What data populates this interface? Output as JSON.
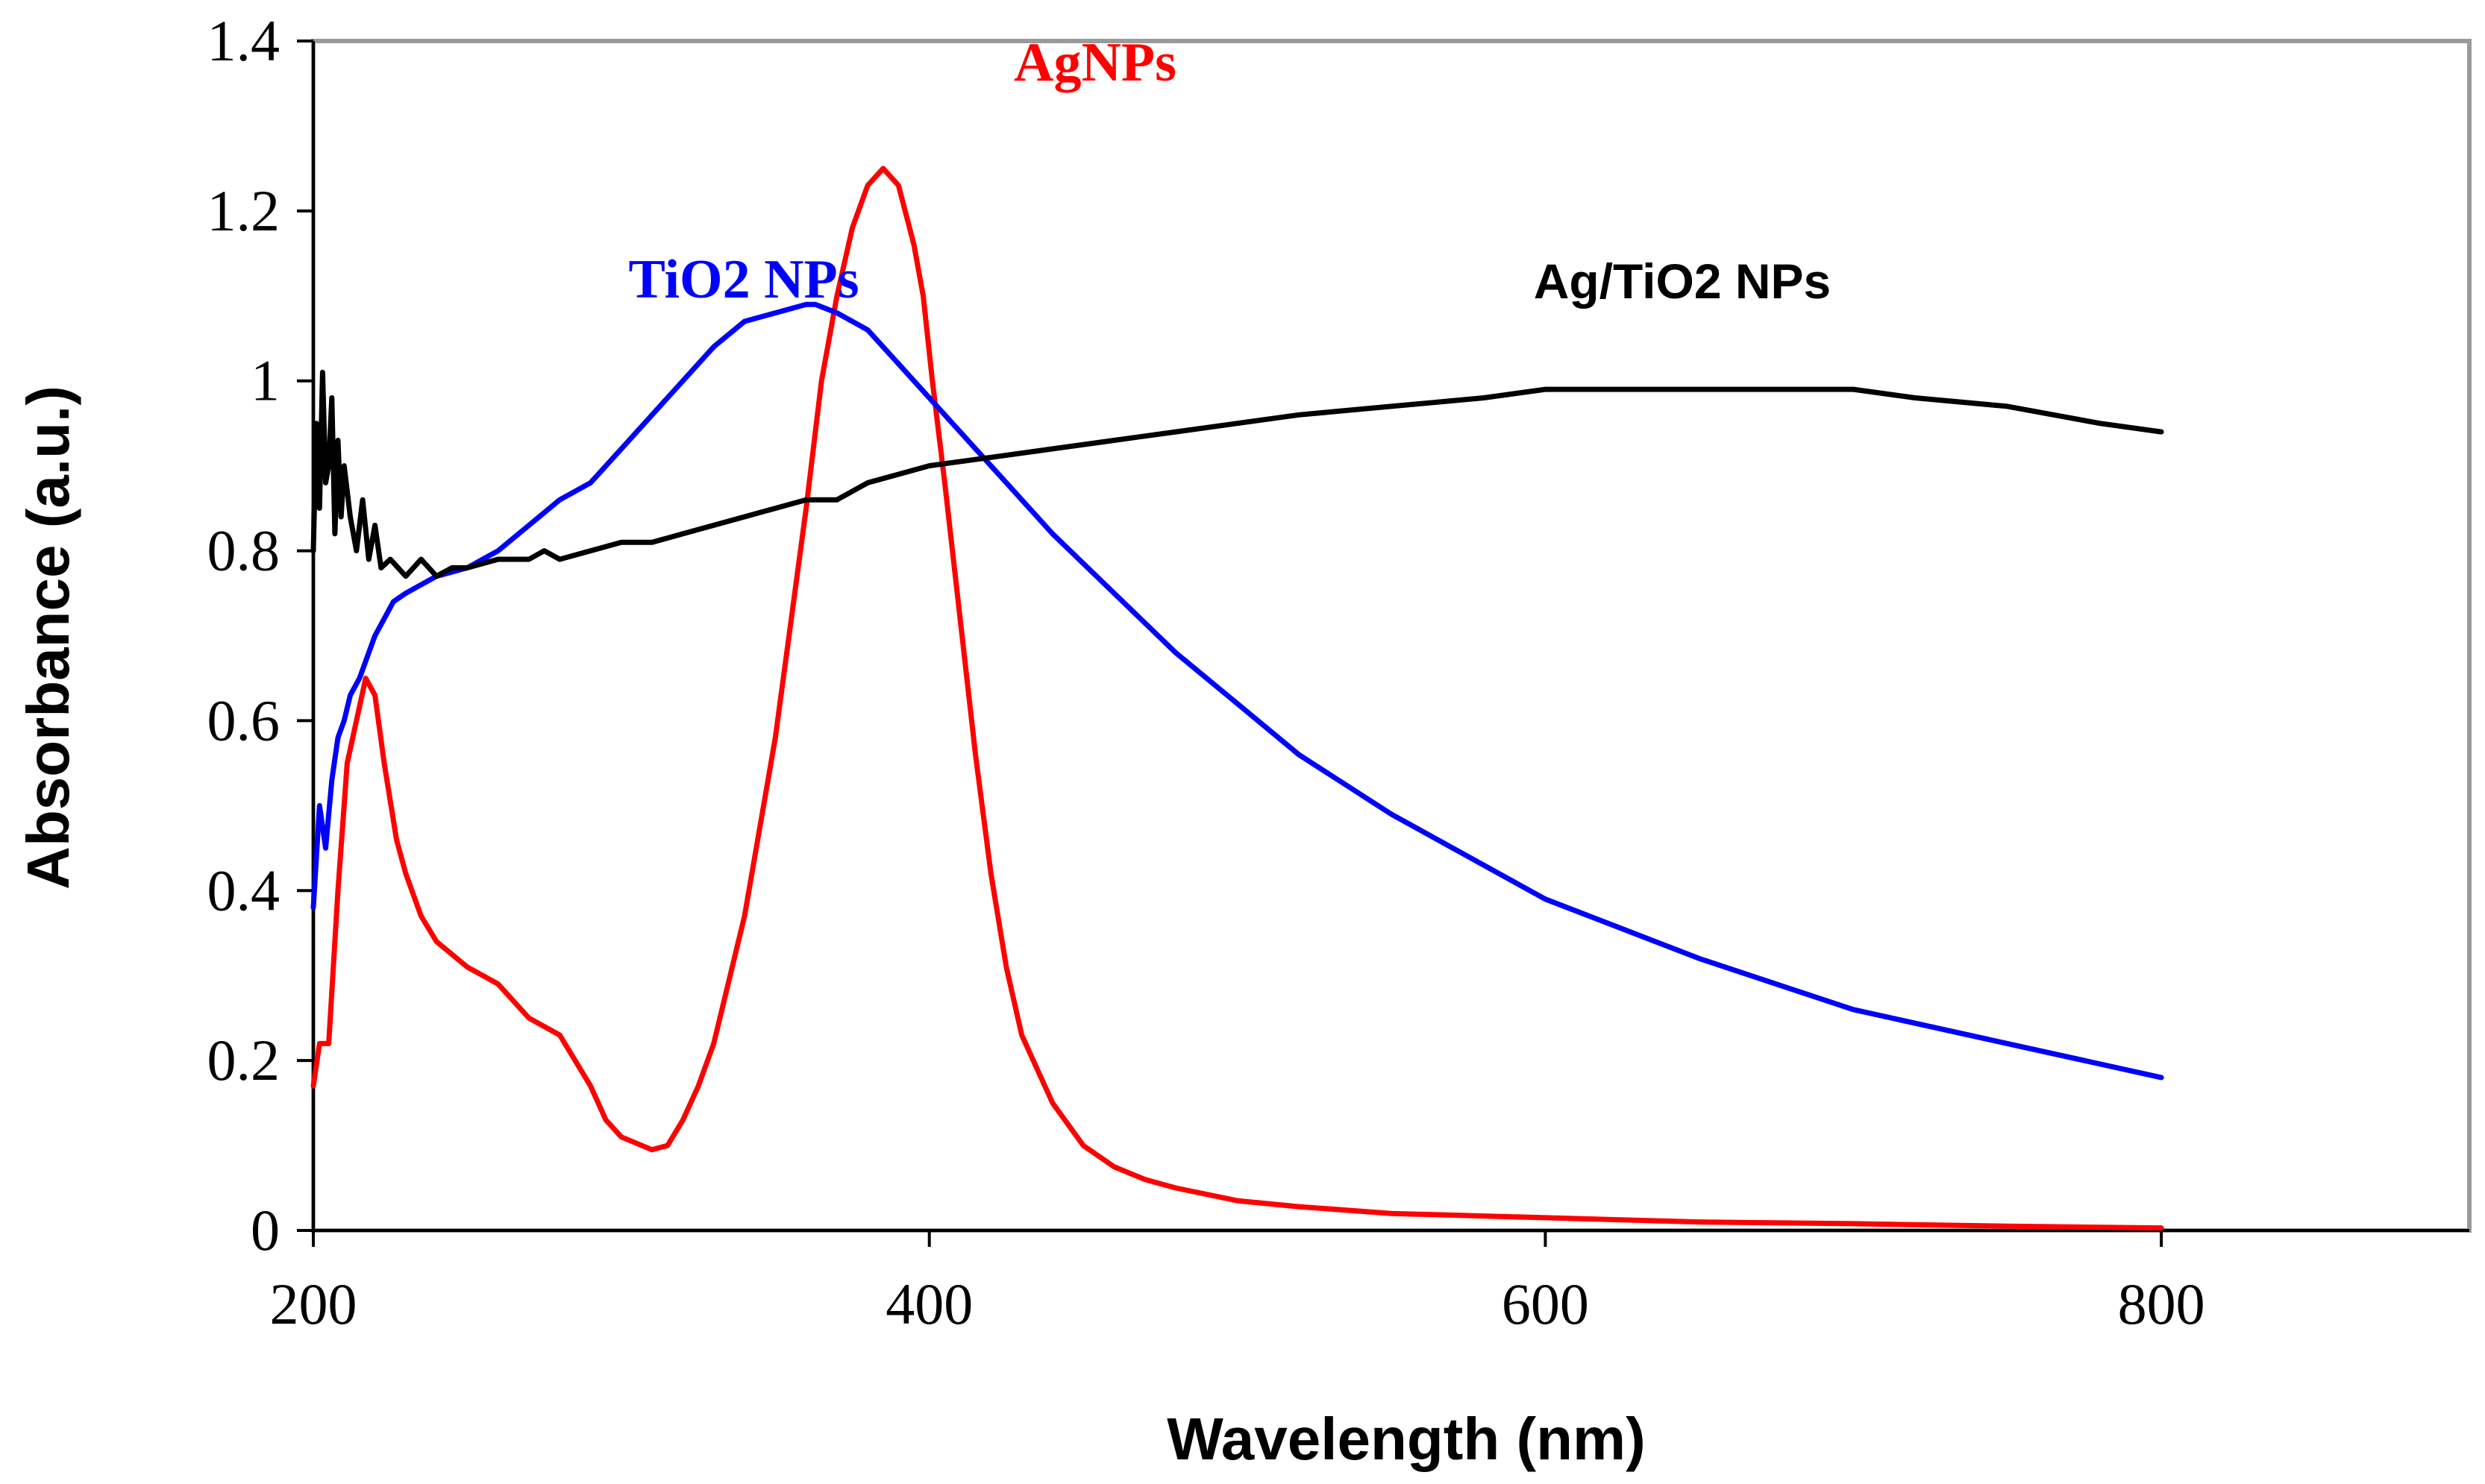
{
  "chart_data": {
    "type": "line",
    "title": "",
    "xlabel": "Wavelength (nm)",
    "ylabel": "Absorbance (a.u.)",
    "xlim": [
      200,
      900
    ],
    "ylim": [
      0,
      1.4
    ],
    "x_ticks": [
      200,
      400,
      600,
      800
    ],
    "x_tick_labels": [
      "200",
      "400",
      "600",
      "800"
    ],
    "y_ticks": [
      0,
      0.2,
      0.4,
      0.6,
      0.8,
      1.0,
      1.2,
      1.4
    ],
    "y_tick_labels": [
      "0",
      "0.2",
      "0.4",
      "0.6",
      "0.8",
      "1",
      "1.2",
      "1.4"
    ],
    "grid": false,
    "legend": "none (inline series labels)",
    "series": [
      {
        "name": "AgNPs",
        "label": "AgNPs",
        "color": "#ff0000",
        "x": [
          200,
          202,
          205,
          208,
          211,
          214,
          217,
          220,
          223,
          227,
          230,
          235,
          240,
          250,
          260,
          270,
          280,
          285,
          290,
          295,
          300,
          310,
          315,
          320,
          325,
          330,
          340,
          350,
          360,
          365,
          370,
          375,
          380,
          385,
          390,
          395,
          398,
          401,
          405,
          410,
          415,
          420,
          425,
          430,
          440,
          450,
          460,
          470,
          480,
          500,
          520,
          550,
          600,
          650,
          700,
          750,
          800
        ],
        "y": [
          0.17,
          0.22,
          0.22,
          0.4,
          0.55,
          0.6,
          0.65,
          0.63,
          0.55,
          0.46,
          0.42,
          0.37,
          0.34,
          0.31,
          0.29,
          0.25,
          0.23,
          0.2,
          0.17,
          0.13,
          0.11,
          0.095,
          0.1,
          0.13,
          0.17,
          0.22,
          0.37,
          0.58,
          0.85,
          1.0,
          1.1,
          1.18,
          1.23,
          1.25,
          1.23,
          1.16,
          1.1,
          1.0,
          0.88,
          0.72,
          0.56,
          0.42,
          0.31,
          0.23,
          0.15,
          0.1,
          0.075,
          0.06,
          0.05,
          0.035,
          0.028,
          0.02,
          0.015,
          0.01,
          0.008,
          0.005,
          0.003
        ]
      },
      {
        "name": "TiO2 NPs",
        "label": "TiO2 NPs",
        "color": "#0000ff",
        "x": [
          200,
          202,
          204,
          206,
          208,
          210,
          212,
          215,
          218,
          220,
          223,
          226,
          230,
          235,
          240,
          250,
          260,
          270,
          280,
          290,
          300,
          310,
          320,
          330,
          340,
          350,
          360,
          363,
          370,
          380,
          390,
          400,
          420,
          440,
          460,
          480,
          500,
          520,
          550,
          600,
          650,
          700,
          750,
          800
        ],
        "y": [
          0.38,
          0.5,
          0.45,
          0.53,
          0.58,
          0.6,
          0.63,
          0.65,
          0.68,
          0.7,
          0.72,
          0.74,
          0.75,
          0.76,
          0.77,
          0.78,
          0.8,
          0.83,
          0.86,
          0.88,
          0.92,
          0.96,
          1.0,
          1.04,
          1.07,
          1.08,
          1.09,
          1.09,
          1.08,
          1.06,
          1.02,
          0.98,
          0.9,
          0.82,
          0.75,
          0.68,
          0.62,
          0.56,
          0.49,
          0.39,
          0.32,
          0.26,
          0.22,
          0.18
        ]
      },
      {
        "name": "Ag/TiO2 NPs",
        "label": "Ag/TiO2 NPs",
        "color": "#000000",
        "x": [
          200,
          201,
          202,
          203,
          204,
          205,
          206,
          207,
          208,
          209,
          210,
          212,
          214,
          216,
          218,
          220,
          222,
          225,
          230,
          235,
          240,
          245,
          250,
          260,
          270,
          275,
          280,
          290,
          300,
          310,
          320,
          330,
          340,
          350,
          360,
          370,
          375,
          380,
          400,
          420,
          440,
          460,
          480,
          500,
          520,
          550,
          580,
          600,
          620,
          650,
          680,
          700,
          720,
          750,
          780,
          800
        ],
        "y": [
          0.8,
          0.95,
          0.85,
          1.01,
          0.88,
          0.9,
          0.98,
          0.82,
          0.93,
          0.84,
          0.9,
          0.84,
          0.8,
          0.86,
          0.79,
          0.83,
          0.78,
          0.79,
          0.77,
          0.79,
          0.77,
          0.78,
          0.78,
          0.79,
          0.79,
          0.8,
          0.79,
          0.8,
          0.81,
          0.81,
          0.82,
          0.83,
          0.84,
          0.85,
          0.86,
          0.86,
          0.87,
          0.88,
          0.9,
          0.91,
          0.92,
          0.93,
          0.94,
          0.95,
          0.96,
          0.97,
          0.98,
          0.99,
          0.99,
          0.99,
          0.99,
          0.99,
          0.98,
          0.97,
          0.95,
          0.94
        ]
      }
    ]
  }
}
